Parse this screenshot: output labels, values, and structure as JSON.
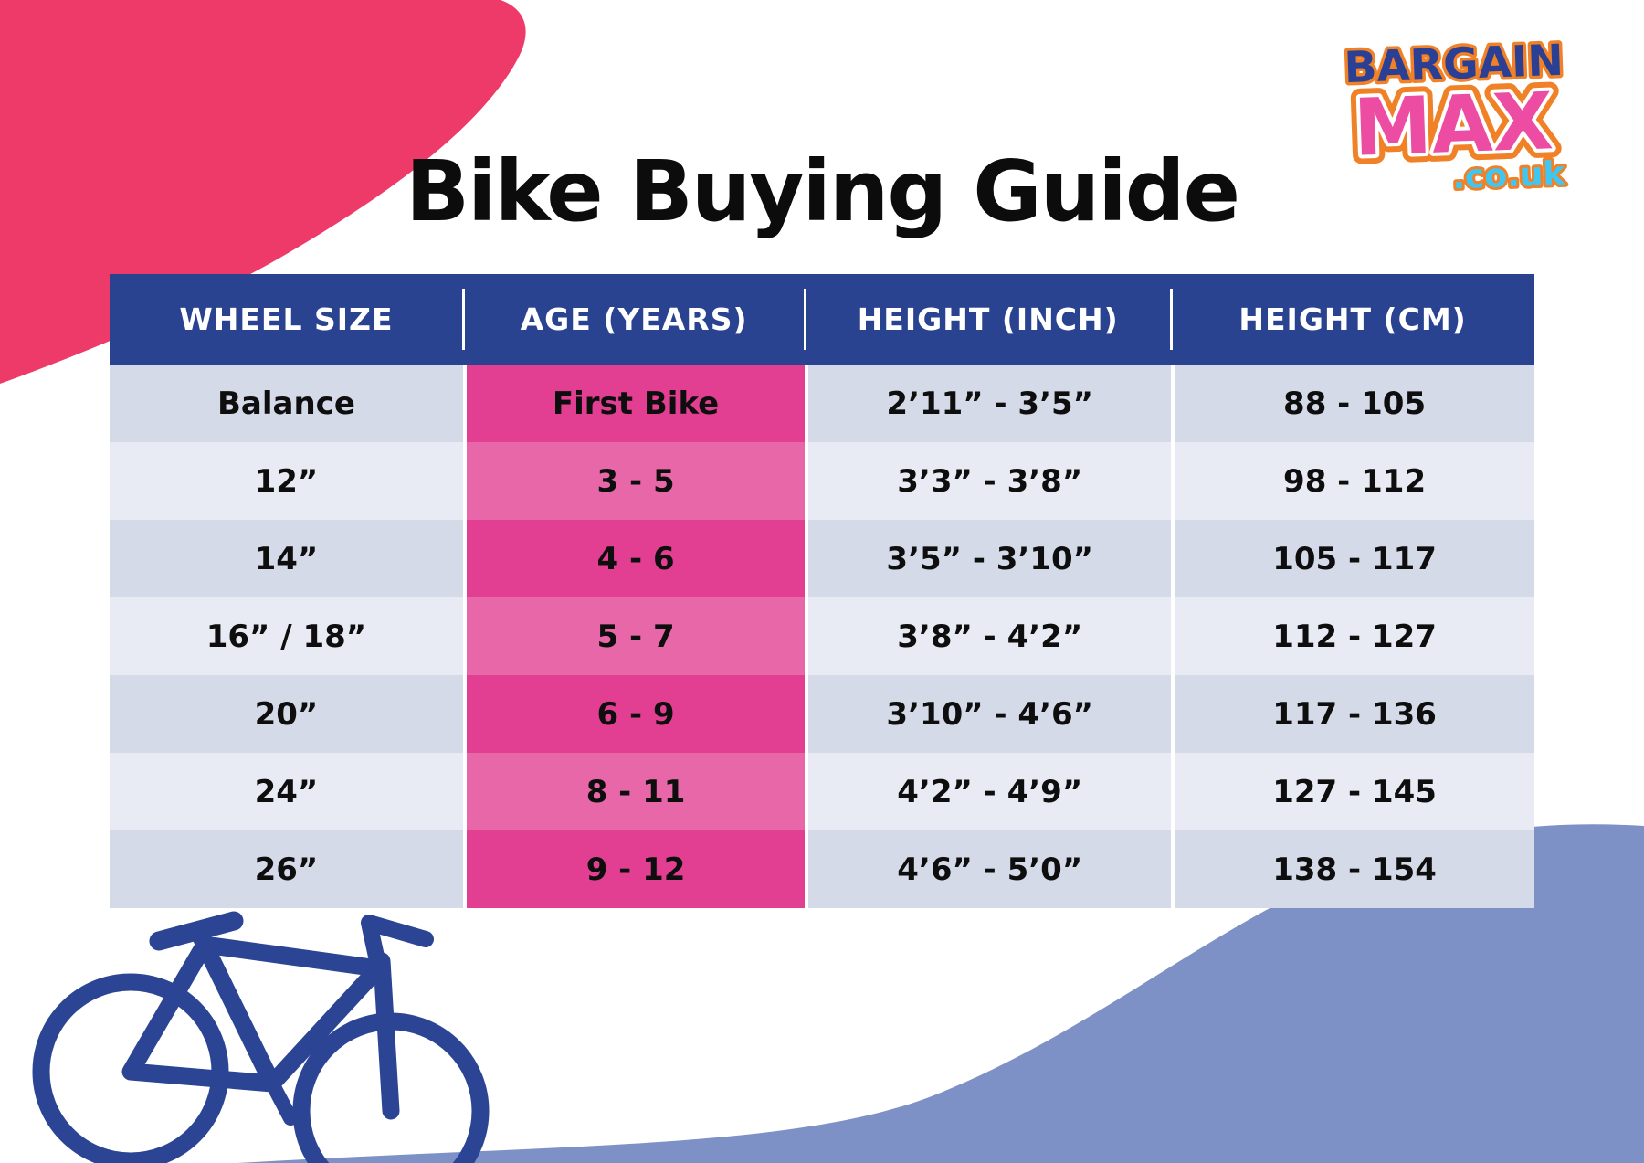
{
  "title": "Bike Buying Guide",
  "logo": {
    "line1": "BARGAIN",
    "line2": "MAX",
    "line3": ".co.uk"
  },
  "table": {
    "columns": [
      "WHEEL SIZE",
      "AGE (YEARS)",
      "HEIGHT (INCH)",
      "HEIGHT (CM)"
    ],
    "rows": [
      [
        "Balance",
        "First Bike",
        "2’11” - 3’5”",
        "88 - 105"
      ],
      [
        "12”",
        "3 - 5",
        "3’3” - 3’8”",
        "98 - 112"
      ],
      [
        "14”",
        "4 - 6",
        "3’5” - 3’10”",
        "105 - 117"
      ],
      [
        "16” / 18”",
        "5 - 7",
        "3’8” - 4’2”",
        "112 - 127"
      ],
      [
        "20”",
        "6 - 9",
        "3’10” - 4’6”",
        "117 - 136"
      ],
      [
        "24”",
        "8 - 11",
        "4’2” - 4’9”",
        "127 - 145"
      ],
      [
        "26”",
        "9 - 12",
        "4’6” - 5’0”",
        "138 - 154"
      ]
    ]
  },
  "chart_data": {
    "type": "table",
    "title": "Bike Buying Guide",
    "columns": [
      "WHEEL SIZE",
      "AGE (YEARS)",
      "HEIGHT (INCH)",
      "HEIGHT (CM)"
    ],
    "rows": [
      [
        "Balance",
        "First Bike",
        "2’11” - 3’5”",
        "88 - 105"
      ],
      [
        "12”",
        "3 - 5",
        "3’3” - 3’8”",
        "98 - 112"
      ],
      [
        "14”",
        "4 - 6",
        "3’5” - 3’10”",
        "105 - 117"
      ],
      [
        "16” / 18”",
        "5 - 7",
        "3’8” - 4’2”",
        "112 - 127"
      ],
      [
        "20”",
        "6 - 9",
        "3’10” - 4’6”",
        "117 - 136"
      ],
      [
        "24”",
        "8 - 11",
        "4’2” - 4’9”",
        "127 - 145"
      ],
      [
        "26”",
        "9 - 12",
        "4’6” - 5’0”",
        "138 - 154"
      ]
    ]
  },
  "colors": {
    "header_bg": "#2A4391",
    "row_odd_bg": "#D5DAE9",
    "row_even_bg": "#E8EBF4",
    "age_col_odd_bg": "#E23F92",
    "age_col_even_bg": "#E767A8",
    "corner_blob_pink": "#EE3A69",
    "bottom_wave_blue": "#7E91C7",
    "bike_outline_blue": "#2B4494",
    "header_text": "#FFFFFF",
    "cell_text": "#0E0E0E",
    "logo_bargain_blue": "#2B3F94",
    "logo_max_pink": "#EC4DA2",
    "logo_couk_blue": "#3EC7F4",
    "logo_outline_orange": "#F08127"
  }
}
